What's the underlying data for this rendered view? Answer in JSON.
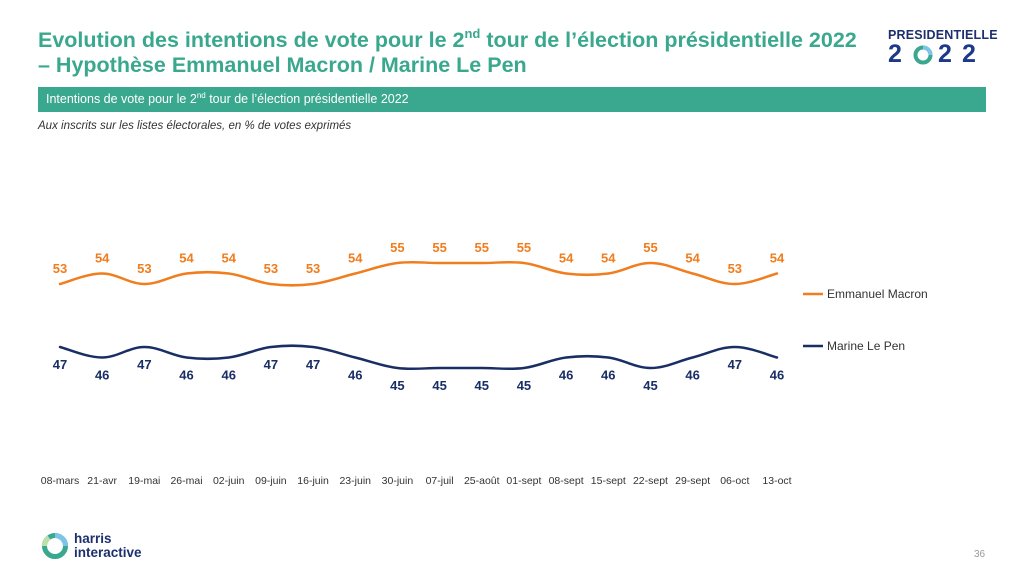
{
  "header": {
    "title_part1": "Evolution des intentions de vote pour le 2",
    "title_sup": "nd",
    "title_part2": " tour de l’élection présidentielle 2022",
    "title_line2": "– Hypothèse Emmanuel Macron / Marine Le Pen"
  },
  "logo": {
    "label": "PRESIDENTIELLE",
    "digits": [
      "2",
      "0",
      "2",
      "2"
    ],
    "color": "#1d3a8a"
  },
  "banner": {
    "text_part1": "Intentions de vote pour le 2",
    "text_sup": "nd",
    "text_part2": " tour de l’élection présidentielle 2022",
    "color": "#3aa88e"
  },
  "subtitle": "Aux inscrits sur les listes électorales, en % de votes exprimés",
  "chart_data": {
    "type": "line",
    "categories": [
      "08-mars",
      "21-avr",
      "19-mai",
      "26-mai",
      "02-juin",
      "09-juin",
      "16-juin",
      "23-juin",
      "30-juin",
      "07-juil",
      "25-août",
      "01-sept",
      "08-sept",
      "15-sept",
      "22-sept",
      "29-sept",
      "06-oct",
      "13-oct"
    ],
    "series": [
      {
        "name": "Emmanuel Macron",
        "color": "#f07d1e",
        "values": [
          53,
          54,
          53,
          54,
          54,
          53,
          53,
          54,
          55,
          55,
          55,
          55,
          54,
          54,
          55,
          54,
          53,
          54
        ]
      },
      {
        "name": "Marine Le Pen",
        "color": "#1a2e66",
        "values": [
          47,
          46,
          47,
          46,
          46,
          47,
          47,
          46,
          45,
          45,
          45,
          45,
          46,
          46,
          45,
          46,
          47,
          46
        ]
      }
    ],
    "title": "",
    "xlabel": "",
    "ylabel": "",
    "ylim": [
      40,
      60
    ],
    "grid": false,
    "legend": "right"
  },
  "footer": {
    "brand_line1": "harris",
    "brand_line2": "interactive",
    "page_number": "36"
  }
}
